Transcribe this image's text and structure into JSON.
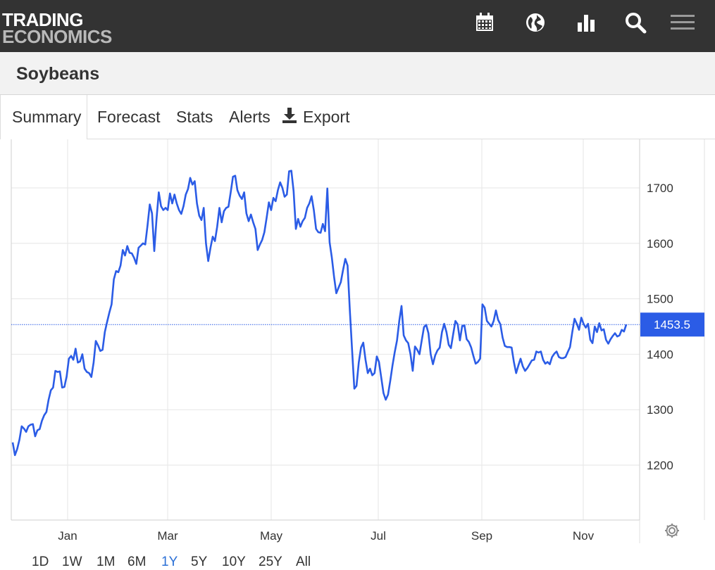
{
  "header": {
    "logo_line1": "TRADING",
    "logo_line2": "ECONOMICS",
    "icons": [
      "calendar-icon",
      "globe-icon",
      "bar-chart-icon",
      "search-icon",
      "menu-icon"
    ]
  },
  "page": {
    "title": "Soybeans"
  },
  "tabs": [
    {
      "label": "Summary",
      "active": true
    },
    {
      "label": "Forecast",
      "active": false
    },
    {
      "label": "Stats",
      "active": false
    },
    {
      "label": "Alerts",
      "active": false
    },
    {
      "label": "Export",
      "active": false,
      "icon": "download-icon"
    }
  ],
  "ranges": [
    {
      "label": "1D",
      "active": false
    },
    {
      "label": "1W",
      "active": false
    },
    {
      "label": "1M",
      "active": false
    },
    {
      "label": "6M",
      "active": false
    },
    {
      "label": "1Y",
      "active": true
    },
    {
      "label": "5Y",
      "active": false
    },
    {
      "label": "10Y",
      "active": false
    },
    {
      "label": "25Y",
      "active": false
    },
    {
      "label": "All",
      "active": false
    }
  ],
  "colors": {
    "line": "#2b5ce6",
    "last_price_bg": "#2b5ce6",
    "active_range": "#2b70d6",
    "header_bg": "#333333"
  },
  "chart_data": {
    "type": "line",
    "series_name": "Soybeans",
    "x_ticks": [
      "Jan",
      "Mar",
      "May",
      "Jul",
      "Sep",
      "Nov"
    ],
    "y_ticks": [
      1200,
      1300,
      1400,
      1500,
      1600,
      1700
    ],
    "ylim": [
      1100,
      1790
    ],
    "last_value": 1453.5,
    "last_label": "1453.5",
    "grid": true,
    "y_axis_position": "right",
    "values": [
      1241,
      1218,
      1229,
      1246,
      1270,
      1266,
      1260,
      1270,
      1273,
      1274,
      1252,
      1263,
      1265,
      1280,
      1290,
      1296,
      1318,
      1335,
      1340,
      1370,
      1368,
      1369,
      1340,
      1341,
      1360,
      1392,
      1397,
      1390,
      1410,
      1385,
      1387,
      1400,
      1374,
      1368,
      1366,
      1359,
      1385,
      1424,
      1416,
      1406,
      1408,
      1440,
      1458,
      1475,
      1490,
      1535,
      1550,
      1548,
      1560,
      1588,
      1578,
      1595,
      1583,
      1582,
      1574,
      1563,
      1592,
      1596,
      1600,
      1598,
      1632,
      1670,
      1654,
      1586,
      1644,
      1692,
      1667,
      1660,
      1664,
      1660,
      1690,
      1672,
      1688,
      1672,
      1660,
      1653,
      1667,
      1688,
      1698,
      1718,
      1706,
      1712,
      1672,
      1650,
      1642,
      1664,
      1600,
      1568,
      1592,
      1612,
      1604,
      1630,
      1664,
      1638,
      1658,
      1664,
      1666,
      1692,
      1720,
      1722,
      1696,
      1686,
      1680,
      1692,
      1654,
      1640,
      1652,
      1638,
      1626,
      1588,
      1598,
      1606,
      1620,
      1646,
      1674,
      1660,
      1682,
      1676,
      1696,
      1710,
      1700,
      1684,
      1688,
      1730,
      1731,
      1694,
      1626,
      1644,
      1630,
      1640,
      1646,
      1664,
      1672,
      1685,
      1660,
      1626,
      1620,
      1619,
      1635,
      1622,
      1699,
      1602,
      1575,
      1540,
      1510,
      1520,
      1530,
      1552,
      1572,
      1560,
      1480,
      1408,
      1338,
      1343,
      1385,
      1412,
      1421,
      1390,
      1366,
      1374,
      1362,
      1366,
      1396,
      1386,
      1358,
      1330,
      1318,
      1327,
      1352,
      1380,
      1404,
      1425,
      1460,
      1487,
      1434,
      1425,
      1420,
      1400,
      1370,
      1414,
      1408,
      1400,
      1425,
      1449,
      1453,
      1438,
      1400,
      1382,
      1398,
      1407,
      1412,
      1440,
      1455,
      1440,
      1417,
      1411,
      1436,
      1460,
      1454,
      1425,
      1451,
      1452,
      1427,
      1422,
      1412,
      1397,
      1383,
      1386,
      1392,
      1490,
      1484,
      1460,
      1455,
      1450,
      1460,
      1479,
      1462,
      1454,
      1430,
      1415,
      1413,
      1413,
      1412,
      1386,
      1366,
      1380,
      1392,
      1378,
      1370,
      1375,
      1382,
      1389,
      1390,
      1405,
      1403,
      1405,
      1390,
      1383,
      1386,
      1382,
      1395,
      1401,
      1405,
      1395,
      1393,
      1393,
      1395,
      1404,
      1413,
      1440,
      1464,
      1455,
      1444,
      1466,
      1455,
      1448,
      1455,
      1426,
      1420,
      1450,
      1440,
      1456,
      1443,
      1445,
      1426,
      1419,
      1427,
      1433,
      1438,
      1432,
      1434,
      1444,
      1441,
      1453.5
    ]
  }
}
